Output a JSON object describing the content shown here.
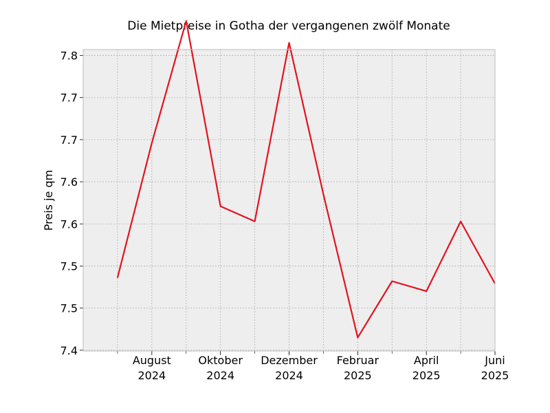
{
  "chart_data": {
    "type": "line",
    "title": "Die Mietpreise in Gotha der vergangenen zwölf Monate",
    "xlabel": "",
    "ylabel": "Preis je qm",
    "x": [
      "2024-07",
      "2024-08",
      "2024-09",
      "2024-10",
      "2024-11",
      "2024-12",
      "2025-01",
      "2025-02",
      "2025-03",
      "2025-04",
      "2025-05",
      "2025-06"
    ],
    "series": [
      {
        "values": [
          7.486,
          7.646,
          7.791,
          7.571,
          7.553,
          7.765,
          7.585,
          7.415,
          7.482,
          7.47,
          7.553,
          7.479
        ],
        "color": "#e3121e"
      }
    ],
    "x_ticks": [
      {
        "x": "2024-08",
        "line1": "August",
        "line2": "2024"
      },
      {
        "x": "2024-10",
        "line1": "Oktober",
        "line2": "2024"
      },
      {
        "x": "2024-12",
        "line1": "Dezember",
        "line2": "2024"
      },
      {
        "x": "2025-02",
        "line1": "Februar",
        "line2": "2025"
      },
      {
        "x": "2025-04",
        "line1": "April",
        "line2": "2025"
      },
      {
        "x": "2025-06",
        "line1": "Juni",
        "line2": "2025"
      }
    ],
    "y_ticks": [
      {
        "value": 7.4,
        "label": "7.4"
      },
      {
        "value": 7.45,
        "label": "7.5"
      },
      {
        "value": 7.5,
        "label": "7.5"
      },
      {
        "value": 7.55,
        "label": "7.6"
      },
      {
        "value": 7.6,
        "label": "7.6"
      },
      {
        "value": 7.65,
        "label": "7.7"
      },
      {
        "value": 7.7,
        "label": "7.7"
      },
      {
        "value": 7.75,
        "label": "7.8"
      }
    ],
    "ylim": [
      7.399,
      7.757
    ],
    "xlim": [
      "2024-06",
      "2025-06"
    ],
    "grid": true,
    "colors": {
      "plot_background": "#eeeeee",
      "grid": "#b0b0b0",
      "frame": "#bcbcbc",
      "line": "#e3121e"
    }
  }
}
